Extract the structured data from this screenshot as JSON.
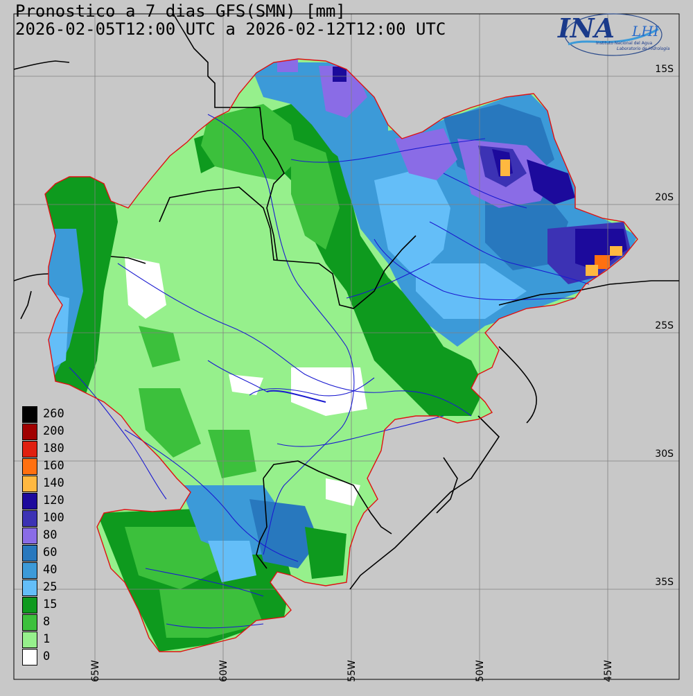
{
  "title": {
    "line1": "Pronostico a 7 dias GFS(SMN) [mm]",
    "line2": "2026-02-05T12:00 UTC a 2026-02-12T12:00 UTC"
  },
  "logo": {
    "main": "INA",
    "sub": "LHI",
    "caption1": "Instituto Nacional del Agua",
    "caption2": "Laboratorio de Hidrología"
  },
  "colors": {
    "background": "#c8c8c8",
    "basin_outline": "#e01010",
    "rivers": "#1a1ad0",
    "borders": "#000000"
  },
  "lat_labels": [
    "15S",
    "20S",
    "25S",
    "30S",
    "35S"
  ],
  "lon_labels": [
    "65W",
    "60W",
    "55W",
    "50W",
    "45W"
  ],
  "legend": [
    {
      "label": "260",
      "color": "#000000"
    },
    {
      "label": "200",
      "color": "#a00000"
    },
    {
      "label": "180",
      "color": "#e02010"
    },
    {
      "label": "160",
      "color": "#ff7010"
    },
    {
      "label": "140",
      "color": "#ffb840"
    },
    {
      "label": "120",
      "color": "#1c0a9c"
    },
    {
      "label": "100",
      "color": "#3c32b4"
    },
    {
      "label": "80",
      "color": "#8a6ce6"
    },
    {
      "label": "60",
      "color": "#2878be"
    },
    {
      "label": "40",
      "color": "#3c9ad8"
    },
    {
      "label": "25",
      "color": "#64bef8"
    },
    {
      "label": "15",
      "color": "#0e9a1e"
    },
    {
      "label": "8",
      "color": "#3cc03c"
    },
    {
      "label": "1",
      "color": "#96f08c"
    },
    {
      "label": "0",
      "color": "#ffffff"
    }
  ]
}
